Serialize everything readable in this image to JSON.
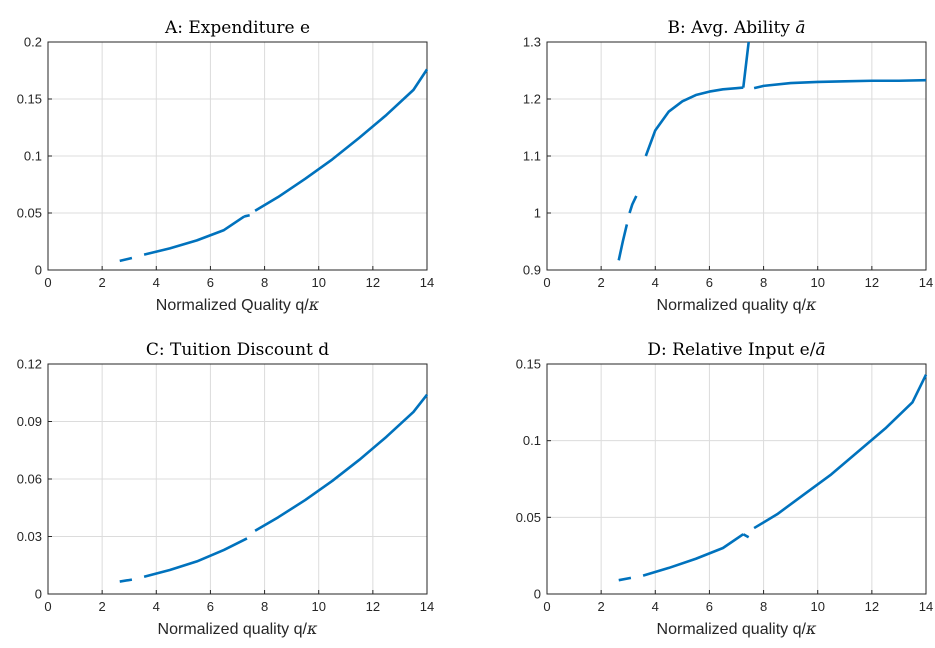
{
  "colors": {
    "series": "#0072BD"
  },
  "chart_data": [
    {
      "type": "line",
      "title": "A: Expenditure e",
      "xlabel": "Normalized Quality q/",
      "xlabel_symbol": "κ",
      "xlim": [
        0,
        14
      ],
      "ylim": [
        0,
        0.2
      ],
      "xticks": [
        0,
        2,
        4,
        6,
        8,
        10,
        12,
        14
      ],
      "yticks": [
        0,
        0.05,
        0.1,
        0.15,
        0.2
      ],
      "yticklabels": [
        "0",
        "0.05",
        "0.1",
        "0.15",
        "0.2"
      ],
      "grid": true,
      "segments": [
        {
          "x": [
            2.65,
            3.1
          ],
          "y": [
            0.008,
            0.0105
          ]
        },
        {
          "x": [
            3.55,
            4.5,
            5.5,
            6.5,
            7.25
          ],
          "y": [
            0.0135,
            0.019,
            0.026,
            0.035,
            0.047
          ]
        },
        {
          "x": [
            7.25,
            7.45
          ],
          "y": [
            0.047,
            0.048
          ]
        },
        {
          "x": [
            7.65,
            8.5,
            9.5,
            10.5,
            11.5,
            12.5,
            13.5,
            14.0
          ],
          "y": [
            0.052,
            0.064,
            0.08,
            0.097,
            0.116,
            0.136,
            0.158,
            0.176
          ]
        }
      ]
    },
    {
      "type": "line",
      "title": "B: Avg. Ability ",
      "title_symbol": "ā",
      "xlabel": "Normalized quality q/",
      "xlabel_symbol": "κ",
      "xlim": [
        0,
        14
      ],
      "ylim": [
        0.9,
        1.3
      ],
      "xticks": [
        0,
        2,
        4,
        6,
        8,
        10,
        12,
        14
      ],
      "yticks": [
        0.9,
        1.0,
        1.1,
        1.2,
        1.3
      ],
      "yticklabels": [
        "0.9",
        "1",
        "1.1",
        "1.2",
        "1.3"
      ],
      "grid": true,
      "segments": [
        {
          "x": [
            2.65,
            2.8,
            2.95
          ],
          "y": [
            0.917,
            0.95,
            0.98
          ]
        },
        {
          "x": [
            3.05,
            3.15,
            3.3
          ],
          "y": [
            1.0,
            1.015,
            1.03
          ]
        },
        {
          "x": [
            3.65,
            4.0,
            4.5,
            5.0,
            5.5,
            6.0,
            6.5,
            7.0,
            7.25
          ],
          "y": [
            1.1,
            1.145,
            1.178,
            1.196,
            1.207,
            1.213,
            1.217,
            1.219,
            1.22
          ]
        },
        {
          "x": [
            7.25,
            7.35,
            7.45
          ],
          "y": [
            1.22,
            1.26,
            1.3
          ]
        },
        {
          "x": [
            7.65,
            8.0,
            9.0,
            10.0,
            11.0,
            12.0,
            13.0,
            14.0
          ],
          "y": [
            1.219,
            1.223,
            1.228,
            1.23,
            1.231,
            1.232,
            1.232,
            1.233
          ]
        }
      ]
    },
    {
      "type": "line",
      "title": "C: Tuition Discount d",
      "xlabel": "Normalized quality q/",
      "xlabel_symbol": "κ",
      "xlim": [
        0,
        14
      ],
      "ylim": [
        0,
        0.12
      ],
      "xticks": [
        0,
        2,
        4,
        6,
        8,
        10,
        12,
        14
      ],
      "yticks": [
        0,
        0.03,
        0.06,
        0.09,
        0.12
      ],
      "yticklabels": [
        "0",
        "0.03",
        "0.06",
        "0.09",
        "0.12"
      ],
      "grid": true,
      "segments": [
        {
          "x": [
            2.65,
            3.1
          ],
          "y": [
            0.0065,
            0.0075
          ]
        },
        {
          "x": [
            3.55,
            4.5,
            5.5,
            6.5,
            7.35
          ],
          "y": [
            0.009,
            0.0125,
            0.017,
            0.023,
            0.029
          ]
        },
        {
          "x": [
            7.65,
            8.5,
            9.5,
            10.5,
            11.5,
            12.5,
            13.5,
            14.0
          ],
          "y": [
            0.033,
            0.04,
            0.049,
            0.059,
            0.07,
            0.082,
            0.095,
            0.104
          ]
        }
      ]
    },
    {
      "type": "line",
      "title": "D: Relative Input e/",
      "title_symbol": "ā",
      "xlabel": "Normalized quality q/",
      "xlabel_symbol": "κ",
      "xlim": [
        0,
        14
      ],
      "ylim": [
        0,
        0.15
      ],
      "xticks": [
        0,
        2,
        4,
        6,
        8,
        10,
        12,
        14
      ],
      "yticks": [
        0,
        0.05,
        0.1,
        0.15
      ],
      "yticklabels": [
        "0",
        "0.05",
        "0.1",
        "0.15"
      ],
      "grid": true,
      "segments": [
        {
          "x": [
            2.65,
            3.1
          ],
          "y": [
            0.009,
            0.0105
          ]
        },
        {
          "x": [
            3.55,
            4.5,
            5.5,
            6.5,
            7.25
          ],
          "y": [
            0.012,
            0.017,
            0.023,
            0.03,
            0.039
          ]
        },
        {
          "x": [
            7.25,
            7.45
          ],
          "y": [
            0.039,
            0.037
          ]
        },
        {
          "x": [
            7.65,
            8.5,
            9.5,
            10.5,
            11.5,
            12.5,
            13.5,
            14.0
          ],
          "y": [
            0.043,
            0.052,
            0.065,
            0.078,
            0.093,
            0.108,
            0.125,
            0.143
          ]
        }
      ]
    }
  ]
}
